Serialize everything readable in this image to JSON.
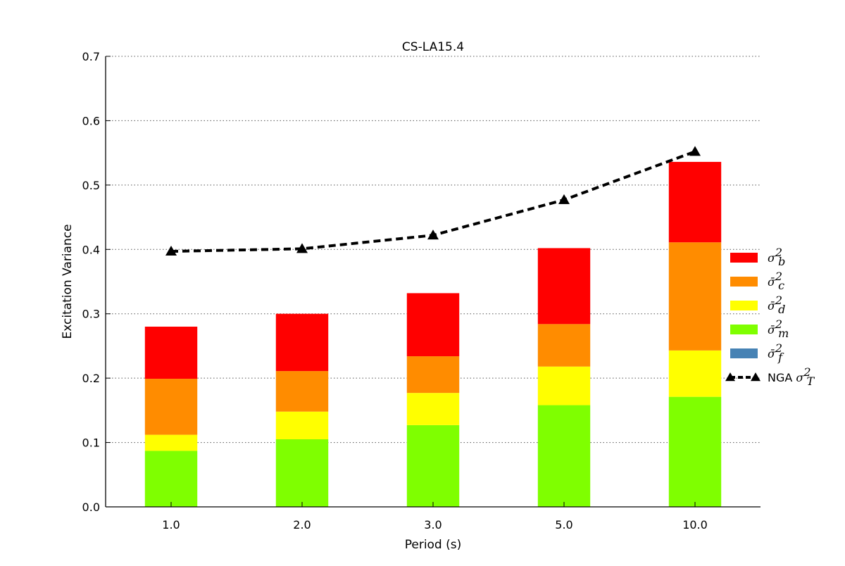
{
  "chart_data": {
    "type": "bar",
    "stacked": true,
    "title": "CS-LA15.4",
    "xlabel": "Period (s)",
    "ylabel": "Excitation Variance",
    "ylim": [
      0,
      0.7
    ],
    "yticks": [
      "0.0",
      "0.1",
      "0.2",
      "0.3",
      "0.4",
      "0.5",
      "0.6",
      "0.7"
    ],
    "grid": "horizontal dotted",
    "legend_position": "right",
    "categories": [
      "1.0",
      "2.0",
      "3.0",
      "5.0",
      "10.0"
    ],
    "series": [
      {
        "name": "σ̄m2",
        "label_main": "σ̄",
        "label_sub": "m",
        "label_sup": "2",
        "color": "#7fff00",
        "values": [
          0.087,
          0.105,
          0.127,
          0.158,
          0.171
        ]
      },
      {
        "name": "σ̄d2",
        "label_main": "σ̄",
        "label_sub": "d",
        "label_sup": "2",
        "color": "#ffff00",
        "values": [
          0.025,
          0.043,
          0.05,
          0.06,
          0.072
        ]
      },
      {
        "name": "σ̄c2",
        "label_main": "σ̄",
        "label_sub": "c",
        "label_sup": "2",
        "color": "#ff8c00",
        "values": [
          0.087,
          0.063,
          0.057,
          0.066,
          0.168
        ]
      },
      {
        "name": "σb2",
        "label_main": "σ",
        "label_sub": "b",
        "label_sup": "2",
        "color": "#ff0000",
        "values": [
          0.081,
          0.089,
          0.098,
          0.118,
          0.125
        ]
      },
      {
        "name": "σ̄f2",
        "label_main": "σ̄",
        "label_sub": "f",
        "label_sup": "2",
        "color": "#4682b4",
        "values": [
          0,
          0,
          0,
          0,
          0
        ]
      }
    ],
    "legend_order": [
      3,
      2,
      1,
      0,
      4
    ],
    "line": {
      "label_prefix": "NGA",
      "label_main": "σ",
      "label_sub": "T",
      "label_sup": "2",
      "color": "#000000",
      "style": "dashed",
      "marker": "triangle",
      "values": [
        0.397,
        0.401,
        0.422,
        0.477,
        0.552
      ]
    }
  }
}
